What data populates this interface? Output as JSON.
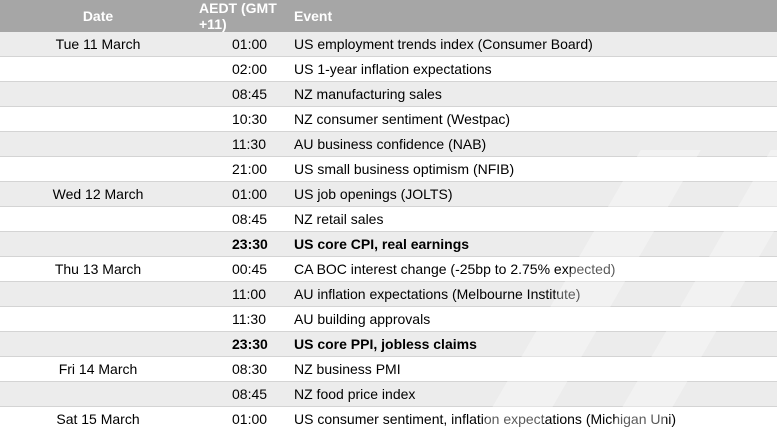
{
  "headers": {
    "date": "Date",
    "time": "AEDT (GMT +11)",
    "event": "Event"
  },
  "rows": [
    {
      "date": "Tue 11 March",
      "time": "01:00",
      "event": "US employment trends index (Consumer Board)",
      "bold": false,
      "shaded": true
    },
    {
      "date": "",
      "time": "02:00",
      "event": "US 1-year inflation expectations",
      "bold": false,
      "shaded": false
    },
    {
      "date": "",
      "time": "08:45",
      "event": "NZ manufacturing sales",
      "bold": false,
      "shaded": true
    },
    {
      "date": "",
      "time": "10:30",
      "event": "NZ consumer sentiment (Westpac)",
      "bold": false,
      "shaded": false
    },
    {
      "date": "",
      "time": "11:30",
      "event": "AU business confidence (NAB)",
      "bold": false,
      "shaded": true
    },
    {
      "date": "",
      "time": "21:00",
      "event": "US small business optimism (NFIB)",
      "bold": false,
      "shaded": false
    },
    {
      "date": "Wed 12 March",
      "time": "01:00",
      "event": "US job openings (JOLTS)",
      "bold": false,
      "shaded": true
    },
    {
      "date": "",
      "time": "08:45",
      "event": "NZ retail sales",
      "bold": false,
      "shaded": false
    },
    {
      "date": "",
      "time": "23:30",
      "event": "US core CPI, real earnings",
      "bold": true,
      "shaded": true
    },
    {
      "date": "Thu 13 March",
      "time": "00:45",
      "event": "CA BOC interest change (-25bp to 2.75% expected)",
      "bold": false,
      "shaded": false
    },
    {
      "date": "",
      "time": "11:00",
      "event": "AU inflation expectations (Melbourne Institute)",
      "bold": false,
      "shaded": true
    },
    {
      "date": "",
      "time": "11:30",
      "event": "AU building approvals",
      "bold": false,
      "shaded": false
    },
    {
      "date": "",
      "time": "23:30",
      "event": "US core PPI, jobless claims",
      "bold": true,
      "shaded": true
    },
    {
      "date": "Fri 14 March",
      "time": "08:30",
      "event": "NZ business PMI",
      "bold": false,
      "shaded": false
    },
    {
      "date": "",
      "time": "08:45",
      "event": "NZ food price index",
      "bold": false,
      "shaded": true
    },
    {
      "date": "Sat 15 March",
      "time": "01:00",
      "event": "US consumer sentiment, inflation expectations (Michigan Uni)",
      "bold": false,
      "shaded": false
    }
  ]
}
